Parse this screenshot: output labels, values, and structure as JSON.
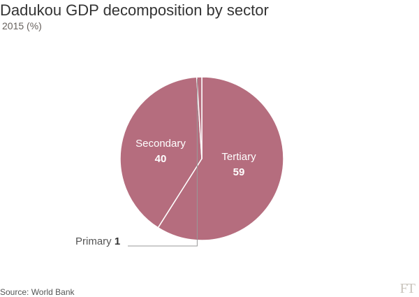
{
  "header": {
    "title": "Dadukou GDP decomposition by sector",
    "subtitle": "2015 (%)"
  },
  "chart_data": {
    "type": "pie",
    "title": "Dadukou GDP decomposition by sector",
    "subtitle": "2015 (%)",
    "slices": [
      {
        "label": "Tertiary",
        "value": 59
      },
      {
        "label": "Secondary",
        "value": 40
      },
      {
        "label": "Primary",
        "value": 1
      }
    ],
    "color": "#b56d7e",
    "separator_color": "#ffffff"
  },
  "footer": {
    "source": "Source: World Bank",
    "logo": "FT"
  }
}
